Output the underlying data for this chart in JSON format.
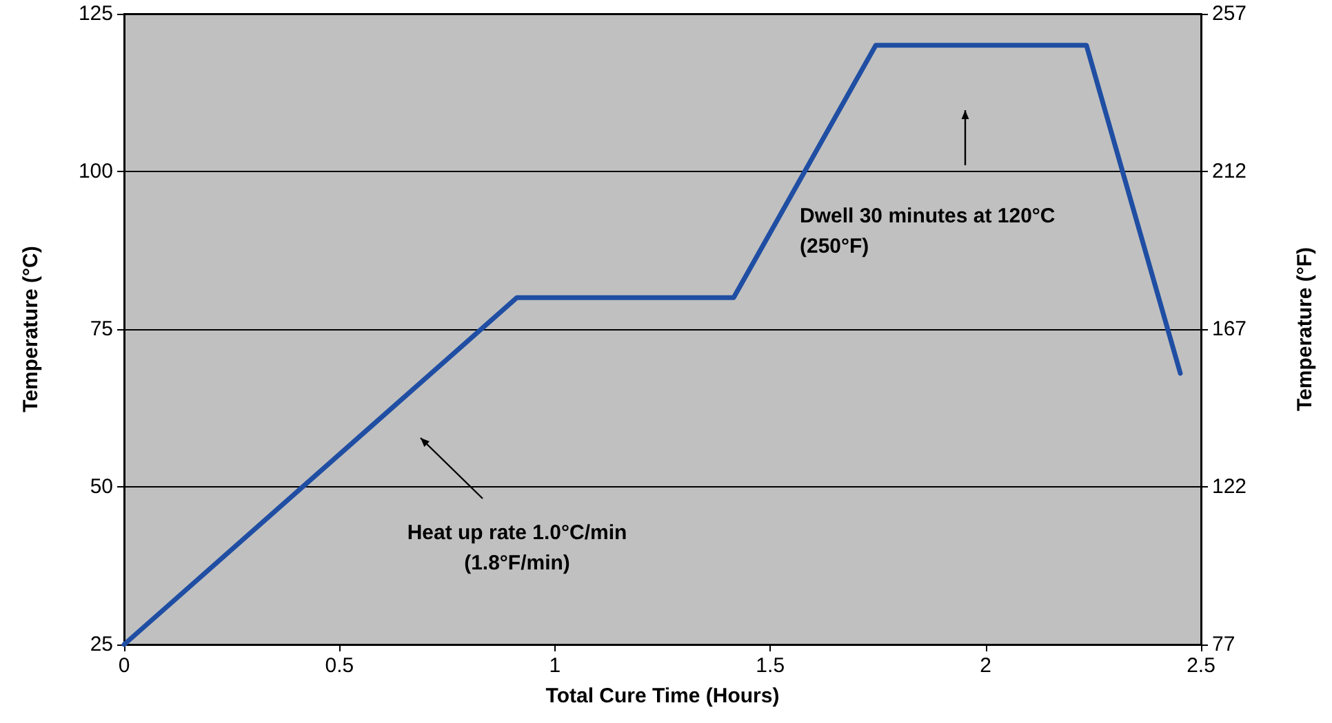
{
  "chart_data": {
    "type": "line",
    "xlabel": "Total Cure Time (Hours)",
    "ylabel": "Temperature (°C)",
    "y2label": "Temperature (°F)",
    "x": [
      0,
      0.912,
      1.415,
      1.745,
      2.234,
      2.452
    ],
    "series": [
      {
        "color": "#1f4ea3",
        "values": [
          25,
          80,
          80,
          120,
          120,
          68
        ]
      }
    ],
    "xlim": [
      0,
      2.5
    ],
    "xticks": [
      0,
      0.5,
      1,
      1.5,
      2,
      2.5
    ],
    "ylim": [
      25,
      125
    ],
    "yticks": [
      25,
      50,
      75,
      100,
      125
    ],
    "y2lim": [
      77,
      257
    ],
    "y2ticks": [
      77,
      122,
      167,
      212,
      257
    ],
    "annotations": [
      "Heat up rate 1.0°C/min\n(1.8°F/min)",
      "Dwell 30 minutes at 120°C\n(250°F)"
    ],
    "grid": "y",
    "marker": "none",
    "line_style": "solid"
  }
}
